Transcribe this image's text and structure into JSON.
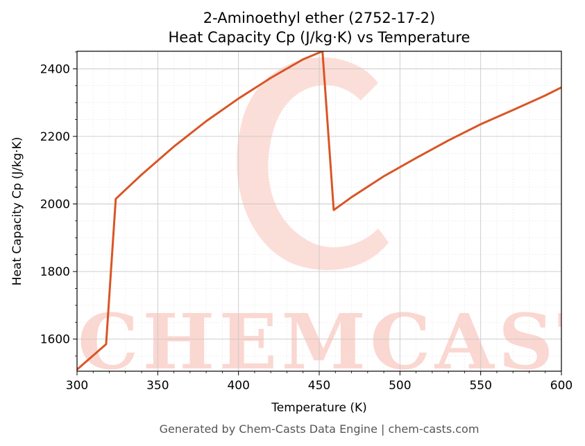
{
  "chart_data": {
    "type": "line",
    "title": "2-Aminoethyl ether (2752-17-2)",
    "subtitle": "Heat Capacity Cp (J/kg·K) vs Temperature",
    "xlabel": "Temperature (K)",
    "ylabel": "Heat Capacity Cp (J/kg·K)",
    "xlim": [
      300,
      600
    ],
    "ylim": [
      1505,
      2452
    ],
    "xticks": [
      300,
      350,
      400,
      450,
      500,
      550,
      600
    ],
    "yticks": [
      1600,
      1800,
      2000,
      2200,
      2400
    ],
    "grid": true,
    "legend": "none",
    "series": [
      {
        "color": "#d95525",
        "x": [
          300,
          318,
          324,
          340,
          360,
          380,
          400,
          420,
          440,
          452,
          459,
          470,
          490,
          510,
          530,
          550,
          570,
          590,
          600
        ],
        "y": [
          1510,
          1585,
          2015,
          2087,
          2170,
          2245,
          2312,
          2373,
          2428,
          2452,
          1982,
          2020,
          2082,
          2136,
          2188,
          2236,
          2278,
          2321,
          2345
        ]
      }
    ]
  },
  "footer": "Generated by Chem-Casts Data Engine | chem-casts.com",
  "watermark": {
    "text": "CHEMCASTS",
    "color": "#fbd5cf"
  }
}
